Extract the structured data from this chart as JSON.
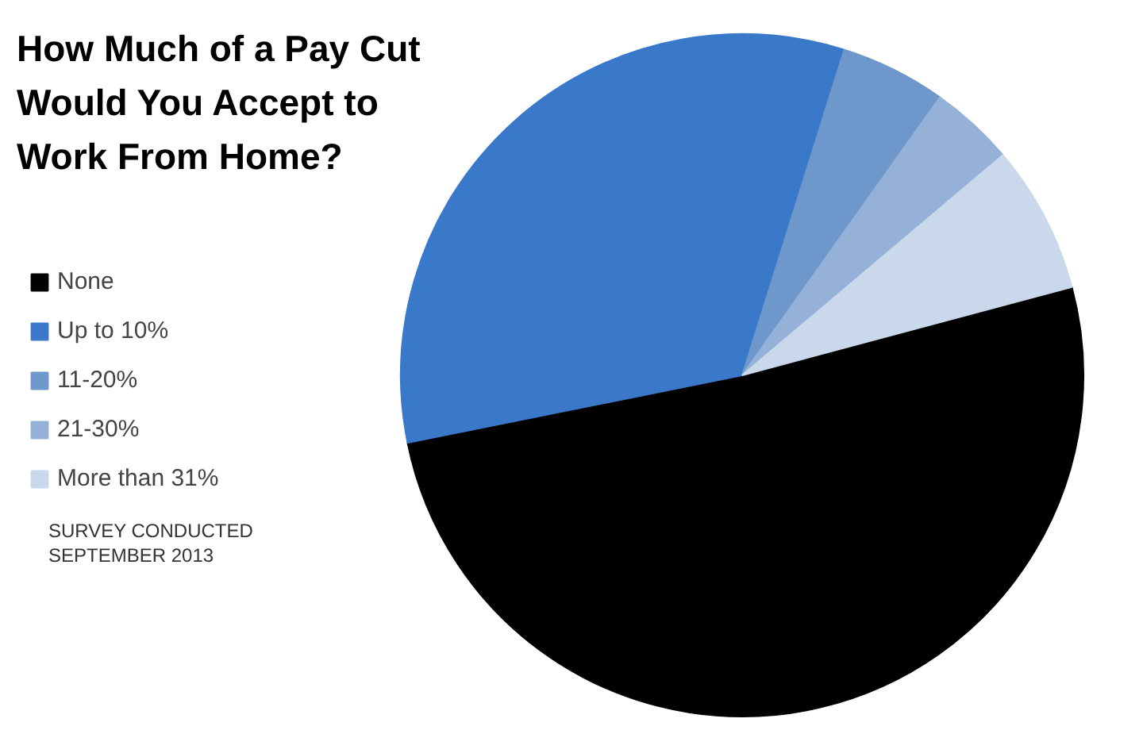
{
  "chart_data": {
    "type": "pie",
    "title": "How Much of a Pay Cut Would You Accept to Work From Home?",
    "categories": [
      "None",
      "Up to 10%",
      "11-20%",
      "21-30%",
      "More than 31%"
    ],
    "values": [
      51,
      33,
      5,
      4,
      7
    ],
    "colors": [
      "#000000",
      "#3a78c9",
      "#6e98cc",
      "#95b1d8",
      "#c9d8ea"
    ],
    "legend": "left",
    "annotations": [
      "SURVEY CONDUCTED\nSEPTEMBER 2013"
    ]
  }
}
